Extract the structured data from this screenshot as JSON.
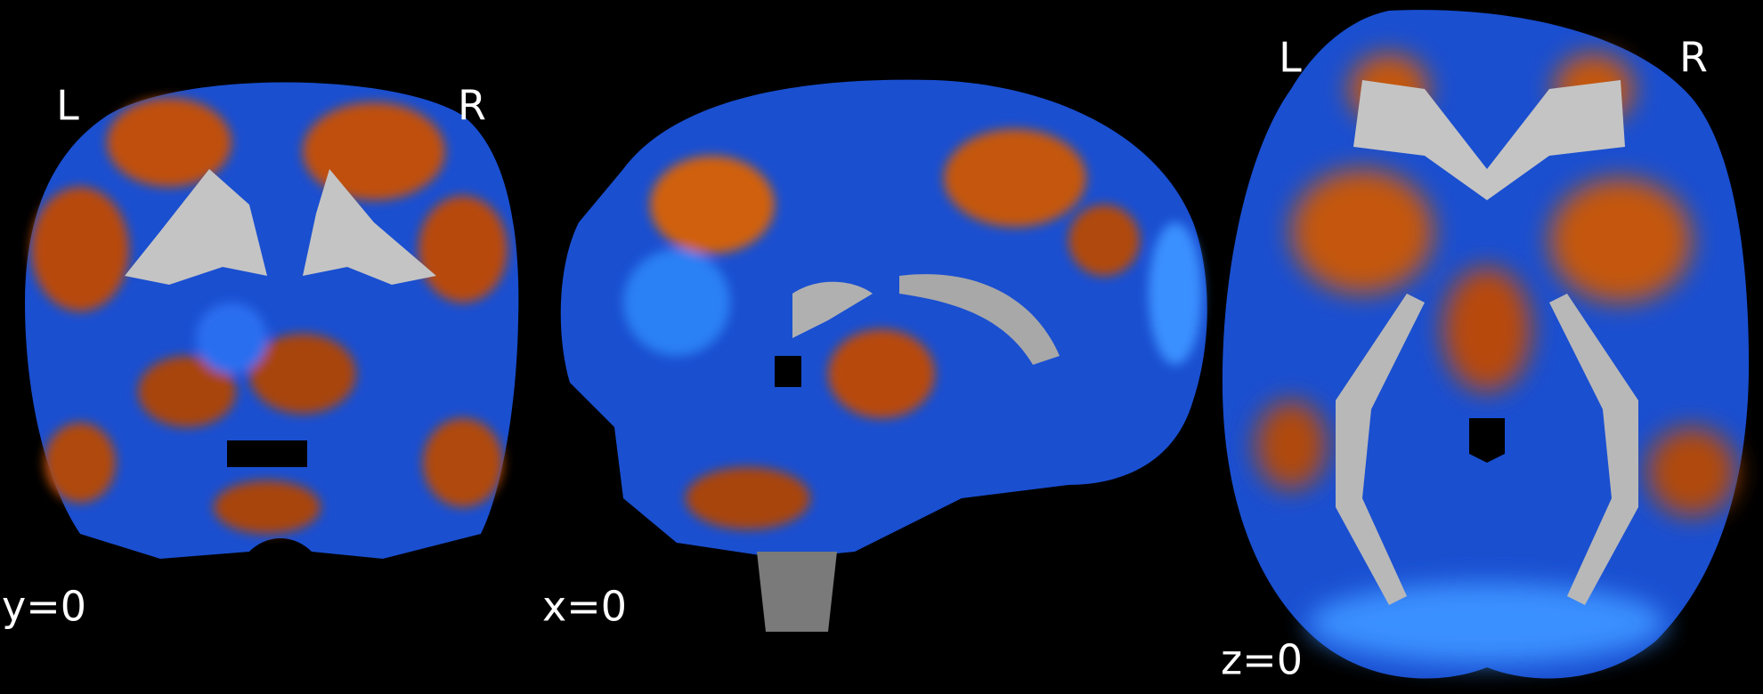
{
  "panels": [
    {
      "left": "L",
      "right": "R",
      "cut": "y=0"
    },
    {
      "cut": "x=0"
    },
    {
      "left": "L",
      "right": "R",
      "cut": "z=0"
    }
  ]
}
